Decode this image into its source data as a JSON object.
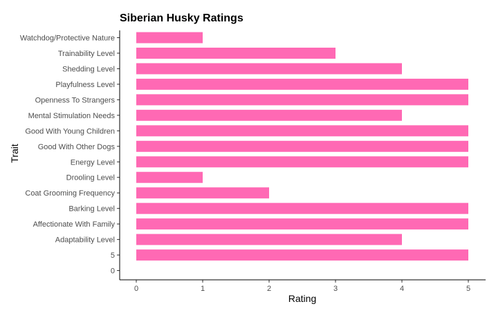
{
  "chart_data": {
    "type": "bar",
    "orientation": "horizontal",
    "title": "Siberian Husky Ratings",
    "xlabel": "Rating",
    "ylabel": "Trait",
    "xlim": [
      0,
      5
    ],
    "x_ticks": [
      0,
      1,
      2,
      3,
      4,
      5
    ],
    "grid": false,
    "bar_color": "#ff69b4",
    "categories": [
      "Watchdog/Protective Nature",
      "Trainability Level",
      "Shedding Level",
      "Playfulness Level",
      "Openness To Strangers",
      "Mental Stimulation Needs",
      "Good With Young Children",
      "Good With Other Dogs",
      "Energy Level",
      "Drooling Level",
      "Coat Grooming Frequency",
      "Barking Level",
      "Affectionate With Family",
      "Adaptability Level",
      "5",
      "0"
    ],
    "values": [
      1,
      3,
      4,
      5,
      5,
      4,
      5,
      5,
      5,
      1,
      2,
      5,
      5,
      4,
      5,
      null
    ]
  }
}
